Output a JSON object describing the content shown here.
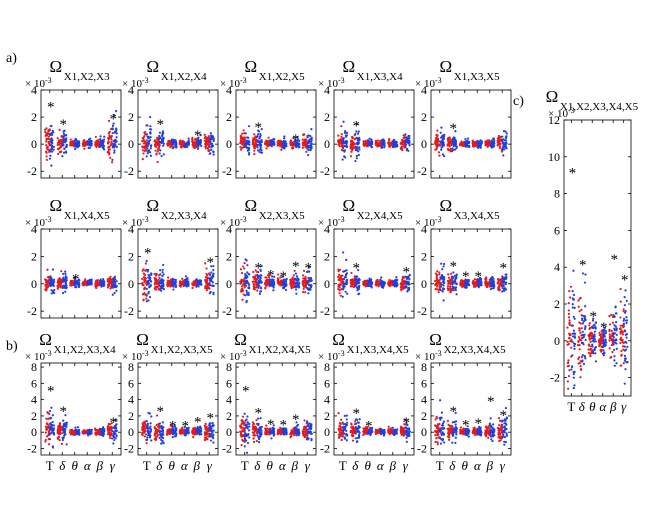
{
  "figure": {
    "group_labels": {
      "a": "a)",
      "b": "b)",
      "c": "c)"
    },
    "axis_exponent": "× 10",
    "axis_exponent_power": "-3",
    "colors": {
      "red": "#e41a1c",
      "blue": "#1f3fe0",
      "axes": "#000000"
    }
  },
  "chart_data": [
    {
      "id": "a1",
      "type": "scatter",
      "title_sym": "Ω",
      "title_sub": "X1,X2,X3",
      "ylim": [
        -2.5,
        4
      ],
      "yticks": [
        -2,
        0,
        2,
        4
      ],
      "xticks": [
        "T",
        "δ",
        "θ",
        "α",
        "β",
        "γ"
      ],
      "xtick_labels_visible": false,
      "spread": [
        2.4,
        1.3,
        0.45,
        0.4,
        0.45,
        1.9
      ],
      "stars": [
        {
          "cat": 0,
          "y": 3.0
        },
        {
          "cat": 1,
          "y": 1.7
        },
        {
          "cat": 5,
          "y": 2.1
        }
      ]
    },
    {
      "id": "a2",
      "type": "scatter",
      "title_sym": "Ω",
      "title_sub": "X1,X2,X4",
      "ylim": [
        -2.5,
        4
      ],
      "yticks": [
        -2,
        0,
        2,
        4
      ],
      "xticks": [
        "T",
        "δ",
        "θ",
        "α",
        "β",
        "γ"
      ],
      "xtick_labels_visible": false,
      "spread": [
        1.9,
        1.3,
        0.45,
        0.4,
        0.6,
        1.1
      ],
      "stars": [
        {
          "cat": 1,
          "y": 1.7
        },
        {
          "cat": 4,
          "y": 0.9
        }
      ]
    },
    {
      "id": "a3",
      "type": "scatter",
      "title_sym": "Ω",
      "title_sub": "X1,X2,X5",
      "ylim": [
        -2.5,
        4
      ],
      "yticks": [
        -2,
        0,
        2,
        4
      ],
      "xticks": [
        "T",
        "δ",
        "θ",
        "α",
        "β",
        "γ"
      ],
      "xtick_labels_visible": false,
      "spread": [
        1.2,
        1.2,
        0.45,
        0.45,
        0.5,
        1.0
      ],
      "stars": [
        {
          "cat": 1,
          "y": 1.5
        },
        {
          "cat": 4,
          "y": 0.6
        }
      ]
    },
    {
      "id": "a4",
      "type": "scatter",
      "title_sym": "Ω",
      "title_sub": "X1,X3,X4",
      "ylim": [
        -2.5,
        4
      ],
      "yticks": [
        -2,
        0,
        2,
        4
      ],
      "xticks": [
        "T",
        "δ",
        "θ",
        "α",
        "β",
        "γ"
      ],
      "xtick_labels_visible": false,
      "spread": [
        1.3,
        1.2,
        0.4,
        0.35,
        0.4,
        0.9
      ],
      "stars": [
        {
          "cat": 1,
          "y": 1.6
        }
      ]
    },
    {
      "id": "a5",
      "type": "scatter",
      "title_sym": "Ω",
      "title_sub": "X1,X3,X5",
      "ylim": [
        -2.5,
        4
      ],
      "yticks": [
        -2,
        0,
        2,
        4
      ],
      "xticks": [
        "T",
        "δ",
        "θ",
        "α",
        "β",
        "γ"
      ],
      "xtick_labels_visible": false,
      "spread": [
        1.3,
        1.0,
        0.4,
        0.35,
        0.4,
        0.9
      ],
      "stars": [
        {
          "cat": 1,
          "y": 1.4
        }
      ]
    },
    {
      "id": "a6",
      "type": "scatter",
      "title_sym": "Ω",
      "title_sub": "X1,X4,X5",
      "ylim": [
        -2.5,
        4
      ],
      "yticks": [
        -2,
        0,
        2,
        4
      ],
      "xticks": [
        "T",
        "δ",
        "θ",
        "α",
        "β",
        "γ"
      ],
      "xtick_labels_visible": false,
      "spread": [
        1.0,
        0.9,
        0.4,
        0.35,
        0.4,
        0.8
      ],
      "stars": [
        {
          "cat": 2,
          "y": 0.6
        }
      ]
    },
    {
      "id": "a7",
      "type": "scatter",
      "title_sym": "Ω",
      "title_sub": "X2,X3,X4",
      "ylim": [
        -2.5,
        4
      ],
      "yticks": [
        -2,
        0,
        2,
        4
      ],
      "xticks": [
        "T",
        "δ",
        "θ",
        "α",
        "β",
        "γ"
      ],
      "xtick_labels_visible": false,
      "spread": [
        2.2,
        1.3,
        0.45,
        0.4,
        0.45,
        1.4
      ],
      "stars": [
        {
          "cat": 0,
          "y": 2.5
        },
        {
          "cat": 5,
          "y": 1.8
        }
      ]
    },
    {
      "id": "a8",
      "type": "scatter",
      "title_sym": "Ω",
      "title_sub": "X2,X3,X5",
      "ylim": [
        -2.5,
        4
      ],
      "yticks": [
        -2,
        0,
        2,
        4
      ],
      "xticks": [
        "T",
        "δ",
        "θ",
        "α",
        "β",
        "γ"
      ],
      "xtick_labels_visible": false,
      "spread": [
        1.8,
        1.3,
        0.6,
        0.6,
        0.8,
        1.2
      ],
      "stars": [
        {
          "cat": 1,
          "y": 1.4
        },
        {
          "cat": 2,
          "y": 0.9
        },
        {
          "cat": 3,
          "y": 0.8
        },
        {
          "cat": 4,
          "y": 1.5
        },
        {
          "cat": 5,
          "y": 1.4
        }
      ]
    },
    {
      "id": "a9",
      "type": "scatter",
      "title_sym": "Ω",
      "title_sub": "X2,X4,X5",
      "ylim": [
        -2.5,
        4
      ],
      "yticks": [
        -2,
        0,
        2,
        4
      ],
      "xticks": [
        "T",
        "δ",
        "θ",
        "α",
        "β",
        "γ"
      ],
      "xtick_labels_visible": false,
      "spread": [
        1.4,
        1.1,
        0.4,
        0.35,
        0.4,
        0.9
      ],
      "stars": [
        {
          "cat": 1,
          "y": 1.4
        },
        {
          "cat": 5,
          "y": 1.1
        }
      ]
    },
    {
      "id": "a10",
      "type": "scatter",
      "title_sym": "Ω",
      "title_sub": "X3,X4,X5",
      "ylim": [
        -2.5,
        4
      ],
      "yticks": [
        -2,
        0,
        2,
        4
      ],
      "xticks": [
        "T",
        "δ",
        "θ",
        "α",
        "β",
        "γ"
      ],
      "xtick_labels_visible": false,
      "spread": [
        1.4,
        1.1,
        0.45,
        0.45,
        0.5,
        1.0
      ],
      "stars": [
        {
          "cat": 1,
          "y": 1.5
        },
        {
          "cat": 2,
          "y": 0.8
        },
        {
          "cat": 3,
          "y": 0.8
        },
        {
          "cat": 5,
          "y": 1.4
        }
      ]
    },
    {
      "id": "b1",
      "type": "scatter",
      "title_sym": "Ω",
      "title_sub": "X1,X2,X3,X4",
      "ylim": [
        -2.8,
        8.5
      ],
      "yticks": [
        -2,
        0,
        2,
        4,
        6,
        8
      ],
      "xticks": [
        "T",
        "δ",
        "θ",
        "α",
        "β",
        "γ"
      ],
      "xtick_labels_visible": true,
      "spread": [
        3.2,
        2.2,
        0.6,
        0.5,
        0.6,
        1.5
      ],
      "stars": [
        {
          "cat": 0,
          "y": 5.5
        },
        {
          "cat": 1,
          "y": 3.0
        },
        {
          "cat": 5,
          "y": 1.6
        }
      ]
    },
    {
      "id": "b2",
      "type": "scatter",
      "title_sym": "Ω",
      "title_sub": "X1,X2,X3,X5",
      "ylim": [
        -2.8,
        8.5
      ],
      "yticks": [
        -2,
        0,
        2,
        4,
        6,
        8
      ],
      "xticks": [
        "T",
        "δ",
        "θ",
        "α",
        "β",
        "γ"
      ],
      "xtick_labels_visible": true,
      "spread": [
        2.2,
        2.0,
        0.8,
        0.6,
        0.8,
        2.0
      ],
      "stars": [
        {
          "cat": 1,
          "y": 3.0
        },
        {
          "cat": 2,
          "y": 1.2
        },
        {
          "cat": 3,
          "y": 1.2
        },
        {
          "cat": 4,
          "y": 1.7
        },
        {
          "cat": 5,
          "y": 2.2
        }
      ]
    },
    {
      "id": "b3",
      "type": "scatter",
      "title_sym": "Ω",
      "title_sub": "X1,X2,X4,X5",
      "ylim": [
        -2.8,
        8.5
      ],
      "yticks": [
        -2,
        0,
        2,
        4,
        6,
        8
      ],
      "xticks": [
        "T",
        "δ",
        "θ",
        "α",
        "β",
        "γ"
      ],
      "xtick_labels_visible": true,
      "spread": [
        3.0,
        2.2,
        0.8,
        0.6,
        0.9,
        1.8
      ],
      "stars": [
        {
          "cat": 0,
          "y": 5.5
        },
        {
          "cat": 1,
          "y": 2.8
        },
        {
          "cat": 2,
          "y": 1.4
        },
        {
          "cat": 3,
          "y": 1.3
        },
        {
          "cat": 4,
          "y": 2.0
        }
      ]
    },
    {
      "id": "b4",
      "type": "scatter",
      "title_sym": "Ω",
      "title_sub": "X1,X3,X4,X5",
      "ylim": [
        -2.8,
        8.5
      ],
      "yticks": [
        -2,
        0,
        2,
        4,
        6,
        8
      ],
      "xticks": [
        "T",
        "δ",
        "θ",
        "α",
        "β",
        "γ"
      ],
      "xtick_labels_visible": true,
      "spread": [
        2.2,
        1.6,
        0.6,
        0.5,
        0.6,
        1.3
      ],
      "stars": [
        {
          "cat": 1,
          "y": 2.7
        },
        {
          "cat": 2,
          "y": 1.2
        },
        {
          "cat": 5,
          "y": 1.6
        }
      ]
    },
    {
      "id": "b5",
      "type": "scatter",
      "title_sym": "Ω",
      "title_sub": "X2,X3,X4,X5",
      "ylim": [
        -2.8,
        8.5
      ],
      "yticks": [
        -2,
        0,
        2,
        4,
        6,
        8
      ],
      "xticks": [
        "T",
        "δ",
        "θ",
        "α",
        "β",
        "γ"
      ],
      "xtick_labels_visible": true,
      "spread": [
        2.4,
        1.9,
        0.8,
        0.7,
        1.3,
        2.5
      ],
      "stars": [
        {
          "cat": 1,
          "y": 3.0
        },
        {
          "cat": 2,
          "y": 1.3
        },
        {
          "cat": 3,
          "y": 1.5
        },
        {
          "cat": 4,
          "y": 4.2
        },
        {
          "cat": 5,
          "y": 2.5
        }
      ]
    },
    {
      "id": "c",
      "type": "scatter",
      "title_sym": "Ω",
      "title_sub": "X1,X2,X3,X4,X5",
      "ylim": [
        -3,
        12
      ],
      "yticks": [
        -2,
        0,
        2,
        4,
        6,
        8,
        10,
        12
      ],
      "xticks": [
        "T",
        "δ",
        "θ",
        "α",
        "β",
        "γ"
      ],
      "xtick_labels_visible": true,
      "spread": [
        5.0,
        3.5,
        1.6,
        1.2,
        1.9,
        3.0
      ],
      "stars": [
        {
          "cat": 0,
          "y": 9.3
        },
        {
          "cat": 1,
          "y": 4.3
        },
        {
          "cat": 2,
          "y": 1.5
        },
        {
          "cat": 3,
          "y": 0.9
        },
        {
          "cat": 4,
          "y": 4.6
        },
        {
          "cat": 5,
          "y": 3.5
        }
      ]
    }
  ]
}
